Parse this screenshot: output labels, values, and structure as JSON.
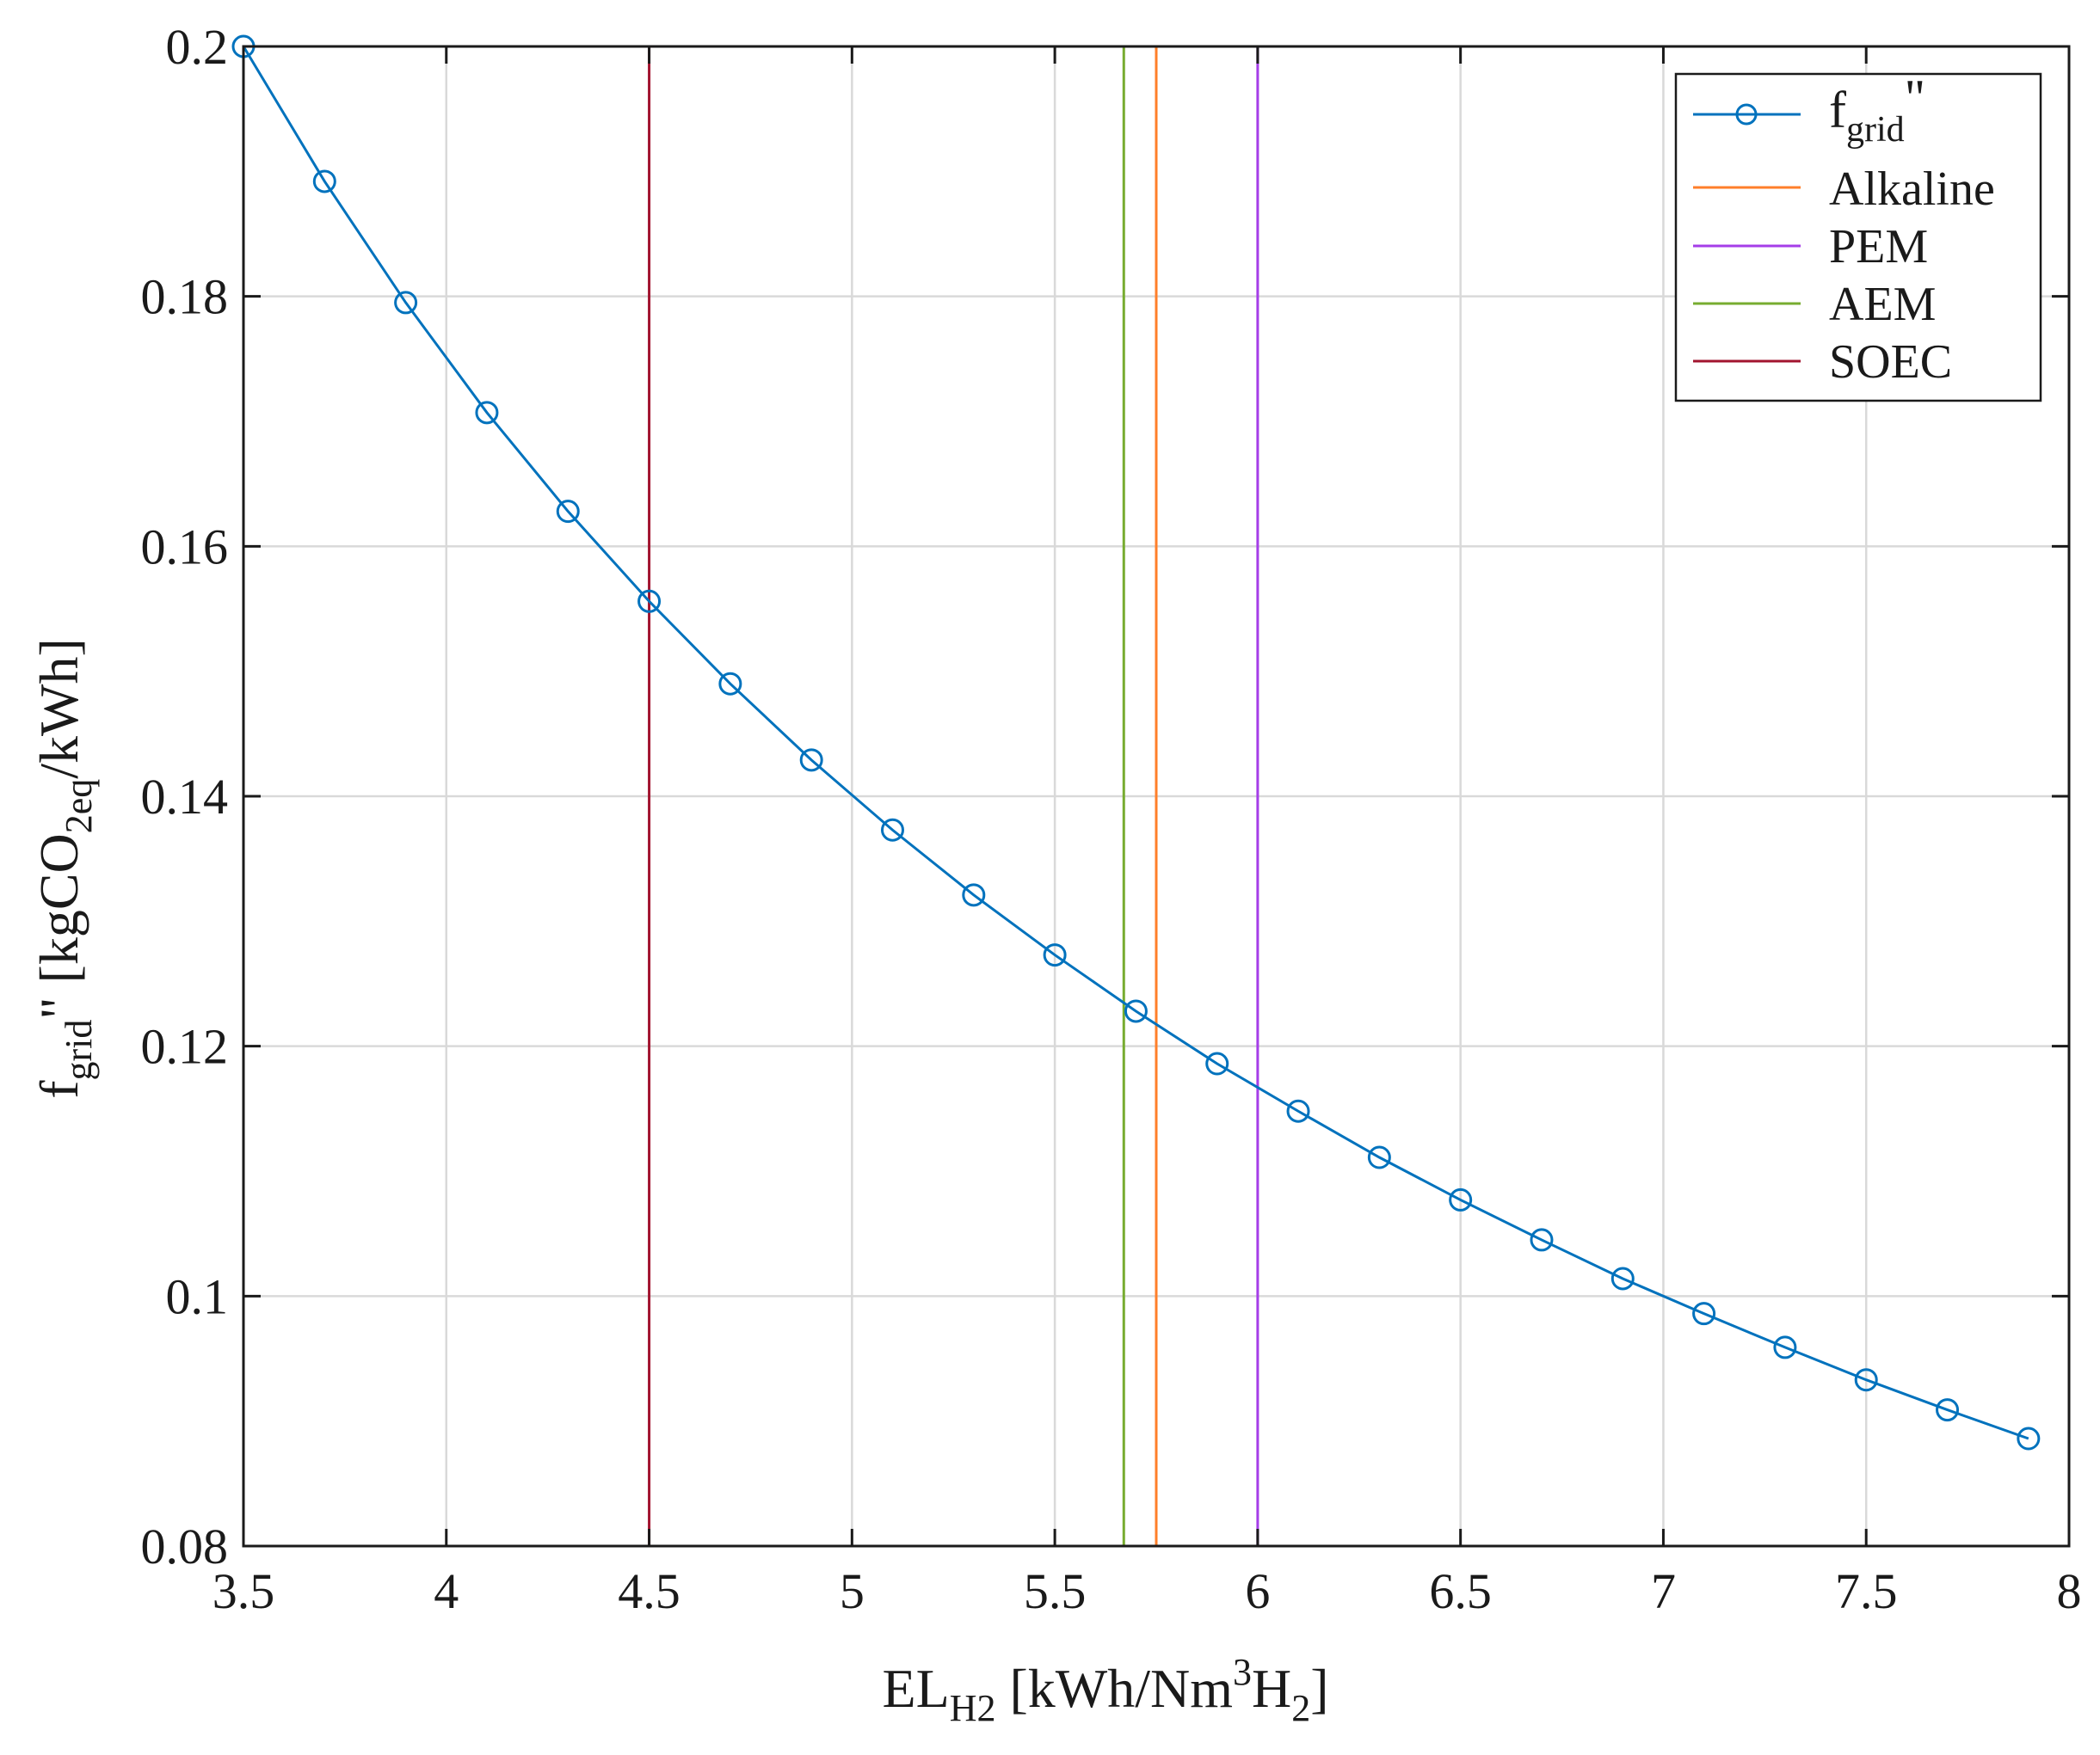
{
  "chart_data": {
    "type": "line",
    "title": "",
    "xlabel": {
      "base": "EL",
      "sub": "H2",
      "unit_open": " [kWh/Nm",
      "sup": "3",
      "unit_h": "H",
      "unit_sub": "2",
      "unit_close": "]"
    },
    "ylabel": {
      "base": "f",
      "sub": "grid",
      "prime": "\" [kgCO",
      "sub2": "2eq",
      "tail": "/kWh]"
    },
    "xlim": [
      3.5,
      8
    ],
    "ylim": [
      0.08,
      0.2
    ],
    "xticks": [
      "3.5",
      "4",
      "4.5",
      "5",
      "5.5",
      "6",
      "6.5",
      "7",
      "7.5",
      "8"
    ],
    "yticks": [
      "0.08",
      "0.1",
      "0.12",
      "0.14",
      "0.16",
      "0.18",
      "0.2"
    ],
    "grid": true,
    "legend_position": "top-right",
    "series": [
      {
        "name": "fgrid\"",
        "legend_base": "f",
        "legend_sub": "grid",
        "legend_suffix": "\"",
        "color": "#0072bd",
        "marker": "circle",
        "x": [
          3.5,
          3.7,
          3.9,
          4.1,
          4.3,
          4.5,
          4.7,
          4.9,
          5.1,
          5.3,
          5.5,
          5.7,
          5.9,
          6.1,
          6.3,
          6.5,
          6.7,
          6.9,
          7.1,
          7.3,
          7.5,
          7.7,
          7.9
        ],
        "y": [
          0.2,
          0.1892,
          0.1795,
          0.1707,
          0.1628,
          0.1556,
          0.149,
          0.1429,
          0.1373,
          0.1321,
          0.1273,
          0.1228,
          0.1186,
          0.1148,
          0.1111,
          0.1077,
          0.1045,
          0.1014,
          0.0986,
          0.0959,
          0.0933,
          0.0909,
          0.0886
        ]
      }
    ],
    "vlines": [
      {
        "name": "Alkaline",
        "x": 5.75,
        "color": "#ff7f2a"
      },
      {
        "name": "PEM",
        "x": 6.0,
        "color": "#a53ee8"
      },
      {
        "name": "AEM",
        "x": 5.67,
        "color": "#77ac30"
      },
      {
        "name": "SOEC",
        "x": 4.5,
        "color": "#a2142f"
      }
    ]
  }
}
